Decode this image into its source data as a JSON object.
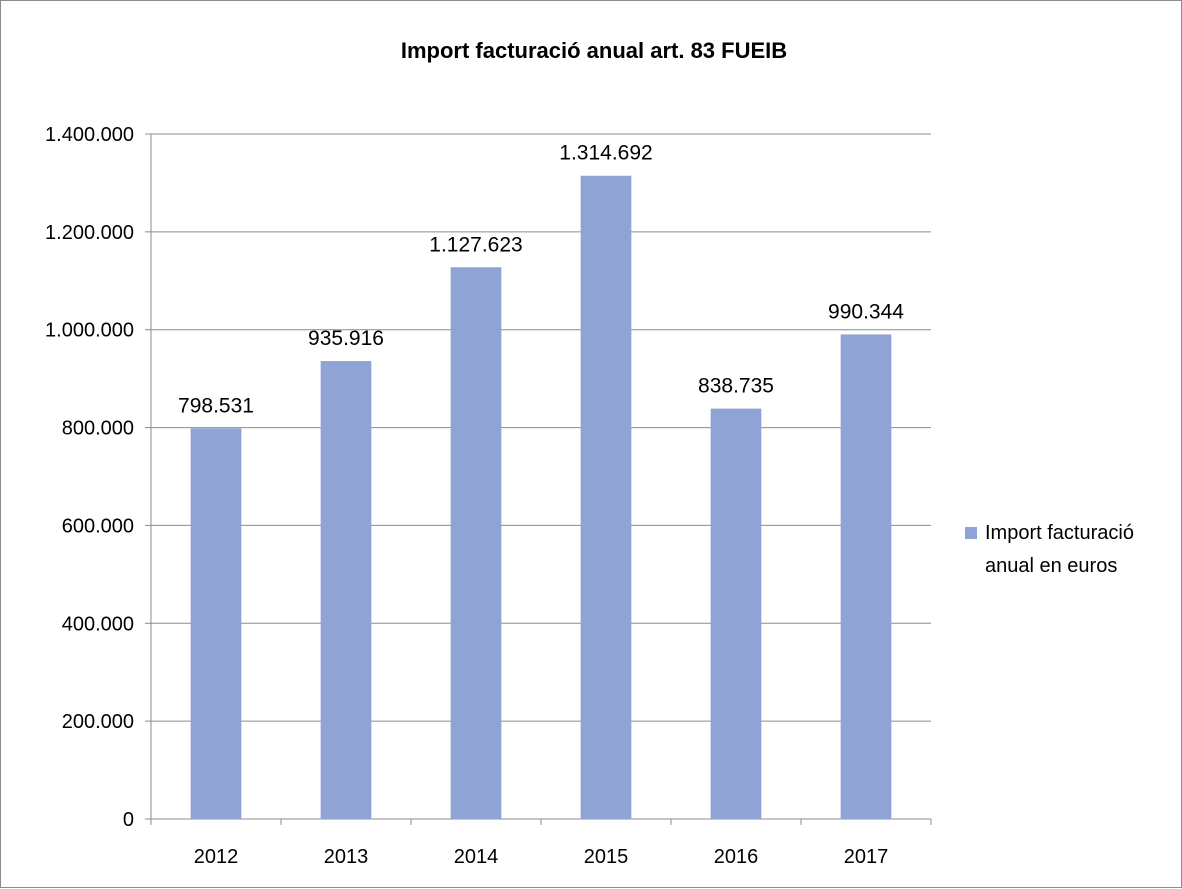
{
  "chart_data": {
    "type": "bar",
    "title": "Import facturació anual art. 83 FUEIB",
    "xlabel": "",
    "ylabel": "",
    "categories": [
      "2012",
      "2013",
      "2014",
      "2015",
      "2016",
      "2017"
    ],
    "series": [
      {
        "name": "Import facturació anual en euros",
        "values": [
          798531,
          935916,
          1127623,
          1314692,
          838735,
          990344
        ],
        "data_labels": [
          "798.531",
          "935.916",
          "1.127.623",
          "1.314.692",
          "838.735",
          "990.344"
        ],
        "color": "#8fa4d4"
      }
    ],
    "ylim": [
      0,
      1400000
    ],
    "yticks": [
      0,
      200000,
      400000,
      600000,
      800000,
      1000000,
      1200000,
      1400000
    ],
    "ytick_labels": [
      "0",
      "200.000",
      "400.000",
      "600.000",
      "800.000",
      "1.000.000",
      "1.200.000",
      "1.400.000"
    ],
    "grid": true,
    "legend_position": "right",
    "legend_lines": [
      "Import facturació",
      "anual en euros"
    ],
    "gridline_color": "#8c8c8c"
  }
}
